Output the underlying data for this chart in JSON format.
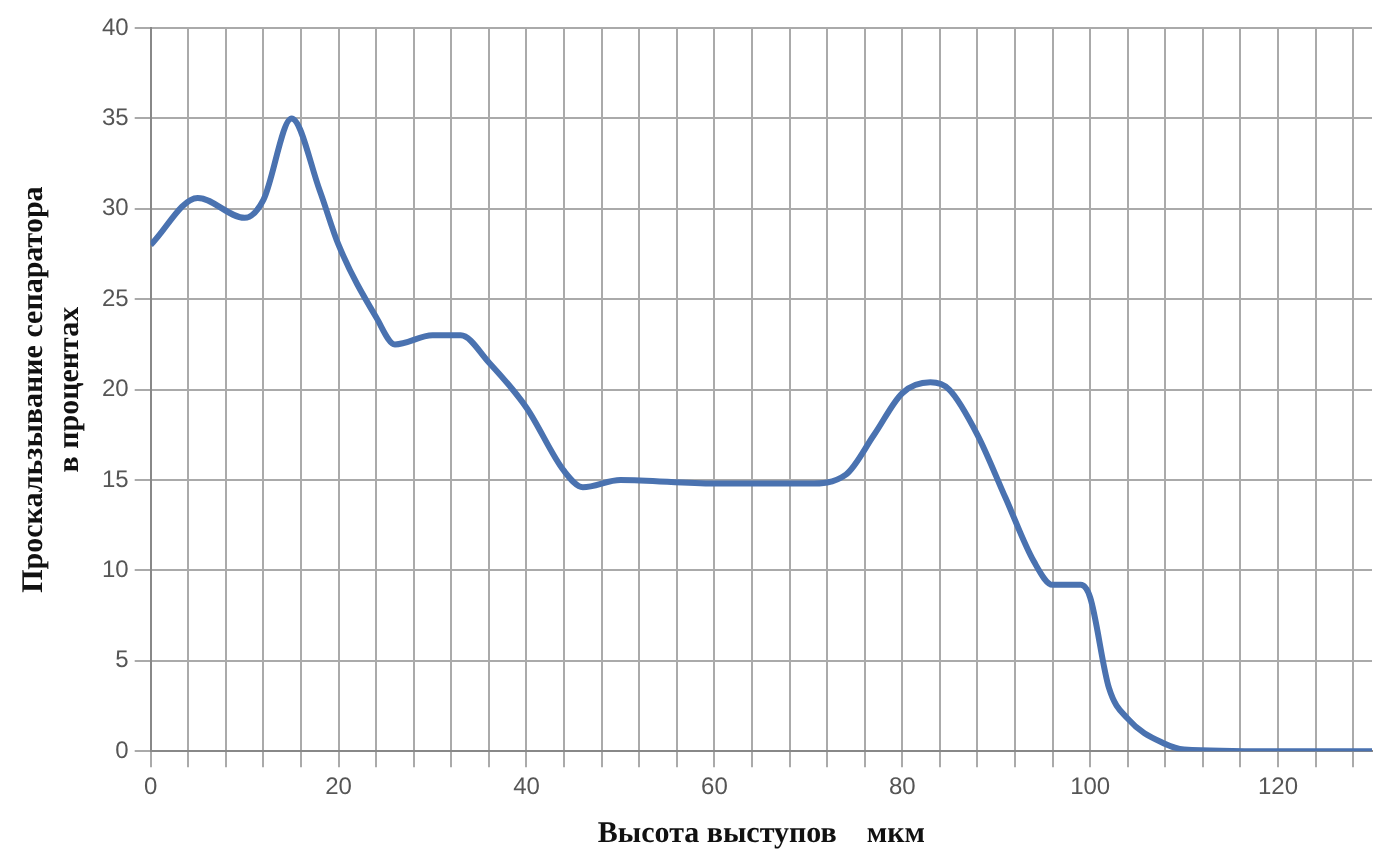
{
  "chart_data": {
    "type": "line",
    "xlabel": "Высота выступов    мкм",
    "ylabel": "Проскальзывание сепаратора\nв процентах",
    "x": [
      0,
      5,
      10,
      12,
      15,
      18,
      20,
      24,
      26,
      30,
      33,
      36,
      40,
      44,
      46,
      50,
      60,
      70,
      74,
      77,
      80,
      83,
      85,
      88,
      91,
      94,
      96,
      99,
      100,
      102,
      104,
      108,
      110,
      120,
      130
    ],
    "series": [
      {
        "color": "#4a72b0",
        "values": [
          28,
          30.6,
          29.5,
          30.5,
          35,
          31,
          28,
          24,
          22.5,
          23,
          23,
          21.5,
          19,
          15.5,
          14.6,
          15,
          14.8,
          14.8,
          15.3,
          17.5,
          19.8,
          20.4,
          20,
          17.5,
          14,
          10.5,
          9.2,
          9.2,
          8.5,
          3.5,
          1.8,
          0.4,
          0.1,
          0,
          0
        ]
      }
    ],
    "xlim": [
      0,
      130
    ],
    "xticks": [
      0,
      {
        "value": 4,
        "label": null
      },
      {
        "value": 8,
        "label": null
      },
      {
        "value": 12,
        "label": null
      },
      {
        "value": 16,
        "label": null
      },
      20,
      {
        "value": 24,
        "label": null
      },
      {
        "value": 28,
        "label": null
      },
      {
        "value": 32,
        "label": null
      },
      {
        "value": 36,
        "label": null
      },
      40,
      {
        "value": 44,
        "label": null
      },
      {
        "value": 48,
        "label": null
      },
      {
        "value": 52,
        "label": null
      },
      {
        "value": 56,
        "label": null
      },
      60,
      {
        "value": 64,
        "label": null
      },
      {
        "value": 68,
        "label": null
      },
      {
        "value": 72,
        "label": null
      },
      {
        "value": 76,
        "label": null
      },
      80,
      {
        "value": 84,
        "label": null
      },
      {
        "value": 88,
        "label": null
      },
      {
        "value": 92,
        "label": null
      },
      {
        "value": 96,
        "label": null
      },
      100,
      {
        "value": 104,
        "label": null
      },
      {
        "value": 108,
        "label": null
      },
      {
        "value": 112,
        "label": null
      },
      {
        "value": 116,
        "label": null
      },
      120,
      {
        "value": 124,
        "label": null
      },
      {
        "value": 128,
        "label": null
      }
    ],
    "ylim": [
      0,
      40
    ],
    "yticks": [
      0,
      5,
      10,
      15,
      20,
      25,
      30,
      35,
      40
    ],
    "grid": true,
    "legend": false,
    "marker": "none",
    "line_style": "solid"
  }
}
